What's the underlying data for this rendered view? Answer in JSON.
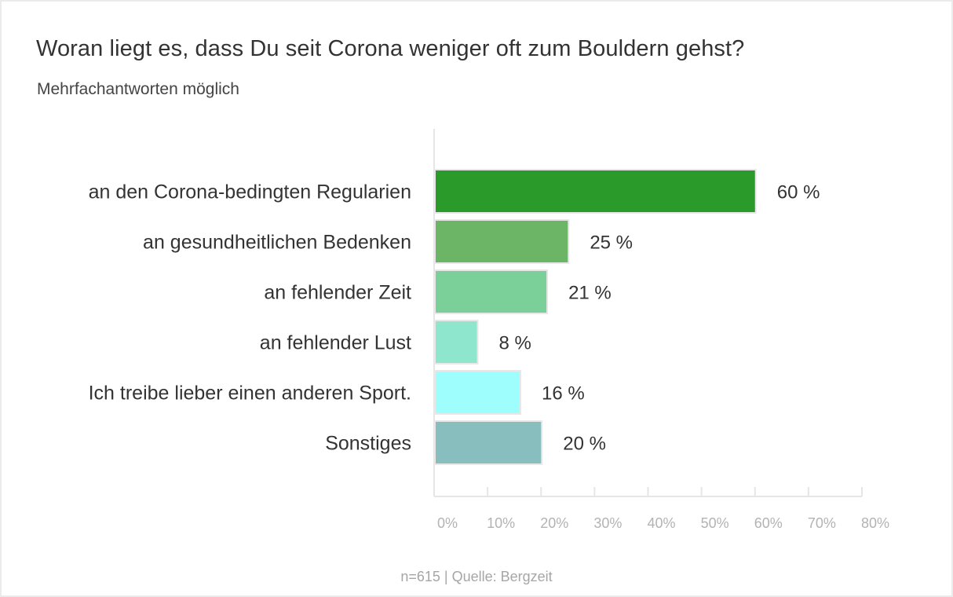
{
  "chart_data": {
    "type": "bar",
    "orientation": "horizontal",
    "title": "Woran liegt es, dass Du seit Corona weniger oft zum Bouldern gehst?",
    "subtitle": "Mehrfachantworten möglich",
    "categories": [
      "an den Corona-bedingten Regularien",
      "an gesundheitlichen Bedenken",
      "an fehlender Zeit",
      "an fehlender Lust",
      "Ich treibe lieber einen anderen Sport.",
      "Sonstiges"
    ],
    "values": [
      60,
      25,
      21,
      8,
      16,
      20
    ],
    "value_labels": [
      "60 %",
      "25 %",
      "21 %",
      "8 %",
      "16 %",
      "20 %"
    ],
    "colors": [
      "#2a9a2a",
      "#6db566",
      "#7bcf98",
      "#8ee6cd",
      "#9efefe",
      "#88bfbe"
    ],
    "xlabel": "",
    "ylabel": "",
    "xlim": [
      0,
      80
    ],
    "x_ticks": [
      0,
      10,
      20,
      30,
      40,
      50,
      60,
      70,
      80
    ],
    "x_tick_labels": [
      "0%",
      "10%",
      "20%",
      "30%",
      "40%",
      "50%",
      "60%",
      "70%",
      "80%"
    ],
    "grid": false,
    "legend": "none",
    "footer": "n=615 | Quelle: Bergzeit"
  },
  "colors": {
    "axis": "#e6e6e6",
    "bar_border": "#e8e8e8",
    "text": "#333333",
    "muted": "#a6a6a6"
  }
}
